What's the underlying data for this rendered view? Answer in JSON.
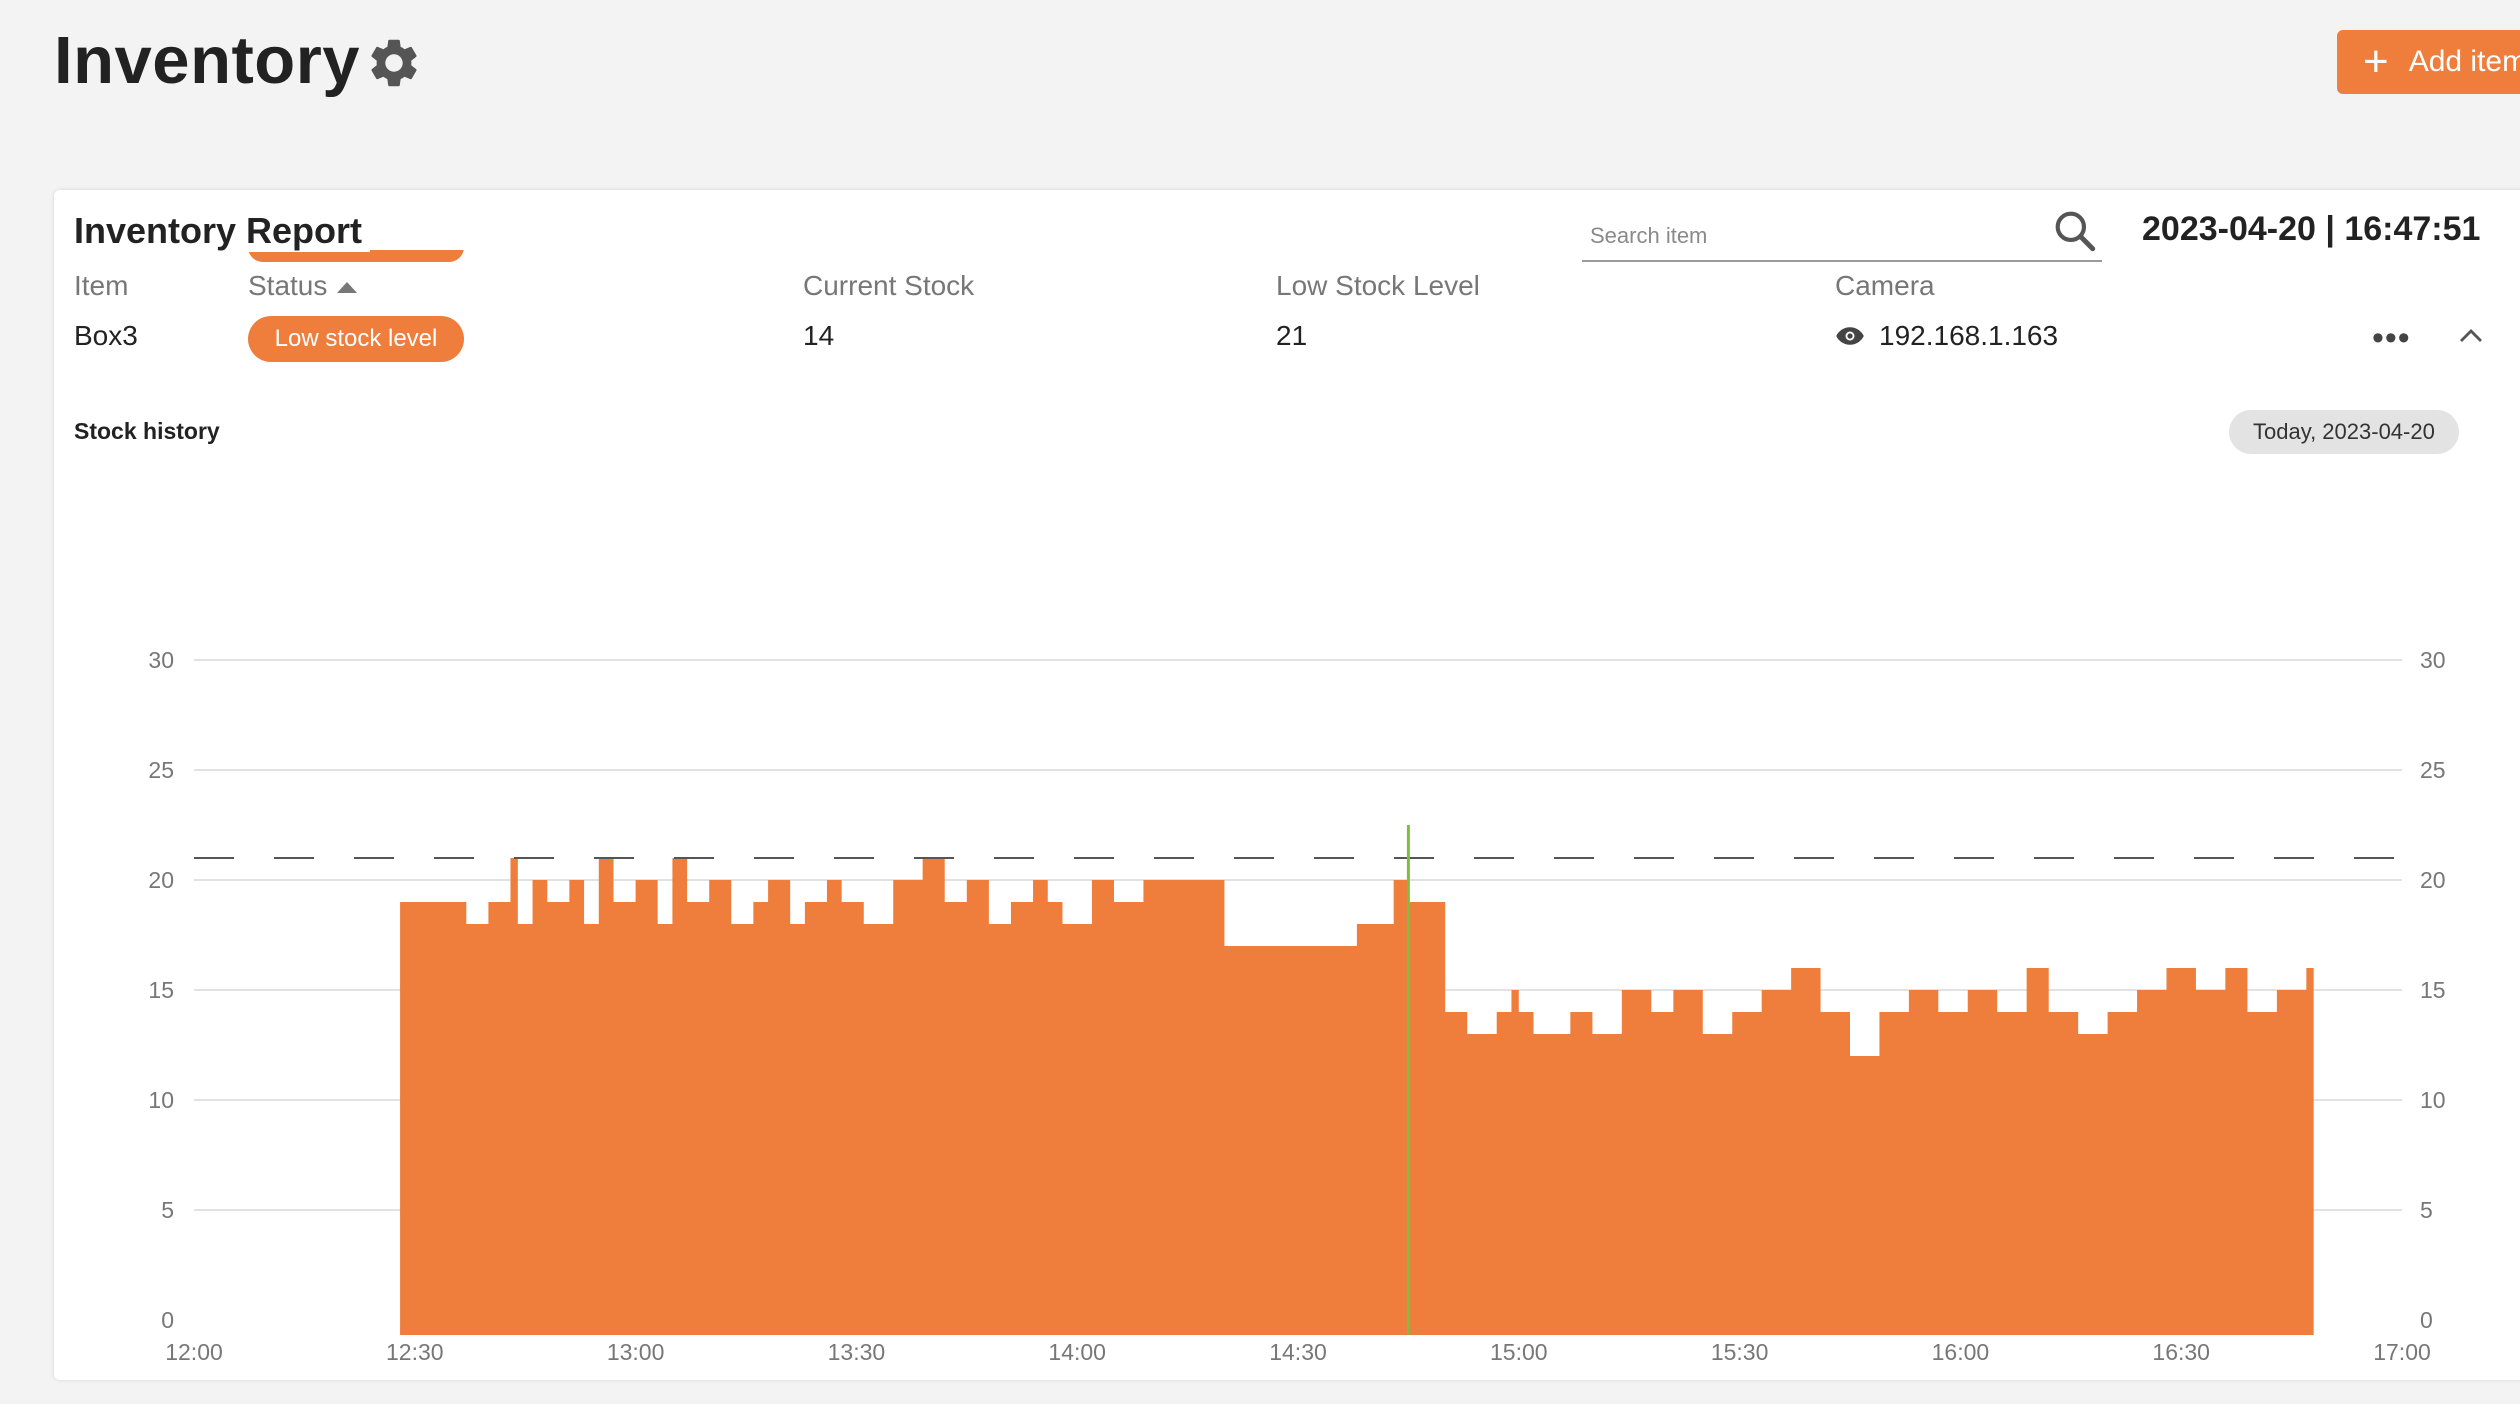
{
  "page": {
    "title": "Inventory",
    "add_button_label": "Add item"
  },
  "report": {
    "title": "Inventory Report",
    "search_placeholder": "Search item",
    "datetime": "2023-04-20 | 16:47:51",
    "columns": [
      "Item",
      "Status",
      "Current Stock",
      "Low Stock Level",
      "Camera"
    ],
    "row": {
      "item": "Box3",
      "status": "Low stock level",
      "current_stock": "14",
      "low_stock_level": "21",
      "camera": "192.168.1.163"
    },
    "stock_history_label": "Stock history",
    "date_chip": "Today, 2023-04-20"
  },
  "colors": {
    "accent": "#ef7e3d",
    "marker": "#7cbf3f"
  },
  "icons": [
    "gear-icon",
    "plus-icon",
    "search-icon",
    "eye-icon",
    "more-icon",
    "chevron-up-icon"
  ],
  "chart_data": {
    "type": "area",
    "x_axis": {
      "min": "12:00",
      "max": "17:00",
      "ticks": [
        "12:00",
        "12:30",
        "13:00",
        "13:30",
        "14:00",
        "14:30",
        "15:00",
        "15:30",
        "16:00",
        "16:30",
        "17:00"
      ]
    },
    "y_axis": {
      "min": 0,
      "max": 30,
      "ticks": [
        0,
        5,
        10,
        15,
        20,
        25,
        30
      ],
      "left_and_right": true
    },
    "threshold": {
      "value": 21,
      "style": "dashed"
    },
    "marker_time": "14:45",
    "series": [
      {
        "points": [
          [
            "12:28",
            19
          ],
          [
            "12:37",
            18
          ],
          [
            "12:40",
            19
          ],
          [
            "12:43",
            21
          ],
          [
            "12:44",
            18
          ],
          [
            "12:46",
            20
          ],
          [
            "12:48",
            19
          ],
          [
            "12:51",
            20
          ],
          [
            "12:53",
            18
          ],
          [
            "12:55",
            21
          ],
          [
            "12:57",
            19
          ],
          [
            "13:00",
            20
          ],
          [
            "13:03",
            18
          ],
          [
            "13:05",
            21
          ],
          [
            "13:07",
            19
          ],
          [
            "13:10",
            20
          ],
          [
            "13:13",
            18
          ],
          [
            "13:16",
            19
          ],
          [
            "13:18",
            20
          ],
          [
            "13:21",
            18
          ],
          [
            "13:23",
            19
          ],
          [
            "13:26",
            20
          ],
          [
            "13:28",
            19
          ],
          [
            "13:31",
            18
          ],
          [
            "13:35",
            20
          ],
          [
            "13:39",
            21
          ],
          [
            "13:42",
            19
          ],
          [
            "13:45",
            20
          ],
          [
            "13:48",
            18
          ],
          [
            "13:51",
            19
          ],
          [
            "13:54",
            20
          ],
          [
            "13:56",
            19
          ],
          [
            "13:58",
            18
          ],
          [
            "14:02",
            20
          ],
          [
            "14:05",
            19
          ],
          [
            "14:09",
            20
          ],
          [
            "14:13",
            20
          ],
          [
            "14:20",
            17
          ],
          [
            "14:38",
            18
          ],
          [
            "14:43",
            20
          ],
          [
            "14:45",
            19
          ],
          [
            "14:49",
            19
          ],
          [
            "14:50",
            14
          ],
          [
            "14:53",
            13
          ],
          [
            "14:57",
            14
          ],
          [
            "14:59",
            15
          ],
          [
            "15:00",
            14
          ],
          [
            "15:02",
            13
          ],
          [
            "15:07",
            14
          ],
          [
            "15:10",
            13
          ],
          [
            "15:14",
            15
          ],
          [
            "15:18",
            14
          ],
          [
            "15:21",
            15
          ],
          [
            "15:25",
            13
          ],
          [
            "15:29",
            14
          ],
          [
            "15:33",
            15
          ],
          [
            "15:37",
            16
          ],
          [
            "15:41",
            14
          ],
          [
            "15:45",
            12
          ],
          [
            "15:49",
            14
          ],
          [
            "15:53",
            15
          ],
          [
            "15:57",
            14
          ],
          [
            "16:01",
            15
          ],
          [
            "16:05",
            14
          ],
          [
            "16:09",
            16
          ],
          [
            "16:12",
            14
          ],
          [
            "16:16",
            13
          ],
          [
            "16:20",
            14
          ],
          [
            "16:24",
            15
          ],
          [
            "16:28",
            16
          ],
          [
            "16:32",
            15
          ],
          [
            "16:36",
            16
          ],
          [
            "16:39",
            14
          ],
          [
            "16:43",
            15
          ],
          [
            "16:47",
            16
          ],
          [
            "16:48",
            14
          ]
        ]
      }
    ]
  }
}
